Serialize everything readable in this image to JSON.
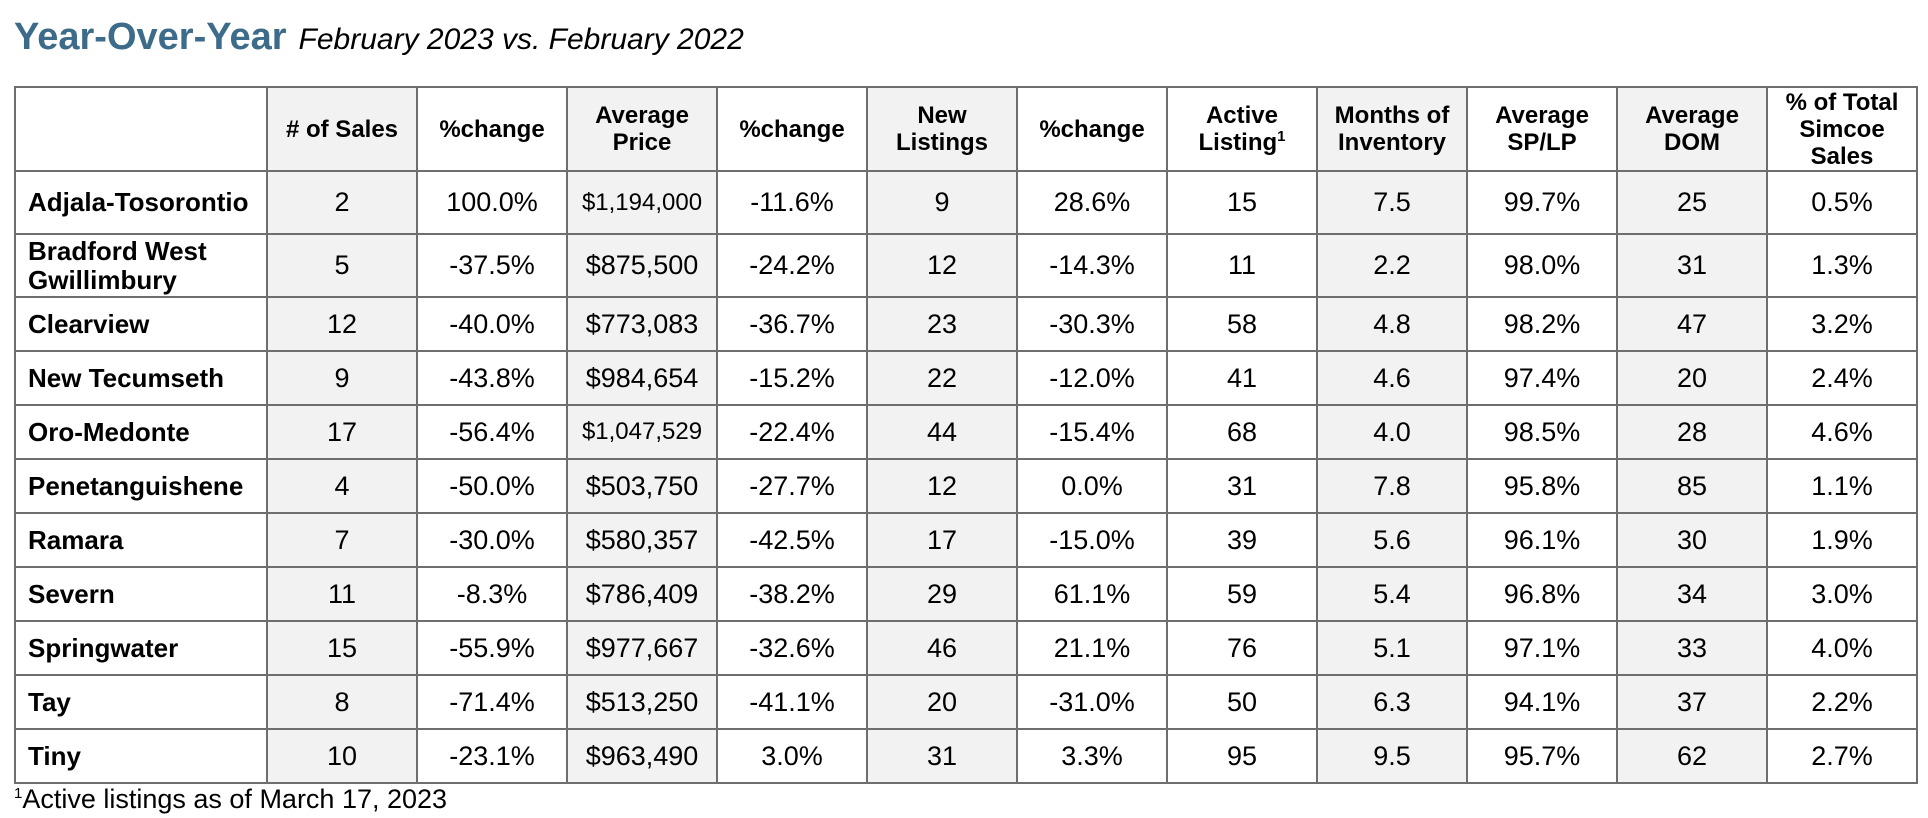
{
  "title": {
    "main": "Year-Over-Year",
    "sub": "February 2023 vs. February 2022"
  },
  "table": {
    "headers": [
      "",
      "# of Sales",
      "%change",
      "Average Price",
      "%change",
      "New Listings",
      "%change",
      "Active Listing",
      "Months of Inventory",
      "Average SP/LP",
      "Average DOM",
      "% of Total Simcoe Sales"
    ],
    "active_listing_marker": "1",
    "rows": [
      [
        "Adjala-Tosorontio",
        "2",
        "100.0%",
        "$1,194,000",
        "-11.6%",
        "9",
        "28.6%",
        "15",
        "7.5",
        "99.7%",
        "25",
        "0.5%"
      ],
      [
        "Bradford West Gwillimbury",
        "5",
        "-37.5%",
        "$875,500",
        "-24.2%",
        "12",
        "-14.3%",
        "11",
        "2.2",
        "98.0%",
        "31",
        "1.3%"
      ],
      [
        "Clearview",
        "12",
        "-40.0%",
        "$773,083",
        "-36.7%",
        "23",
        "-30.3%",
        "58",
        "4.8",
        "98.2%",
        "47",
        "3.2%"
      ],
      [
        "New Tecumseth",
        "9",
        "-43.8%",
        "$984,654",
        "-15.2%",
        "22",
        "-12.0%",
        "41",
        "4.6",
        "97.4%",
        "20",
        "2.4%"
      ],
      [
        "Oro-Medonte",
        "17",
        "-56.4%",
        "$1,047,529",
        "-22.4%",
        "44",
        "-15.4%",
        "68",
        "4.0",
        "98.5%",
        "28",
        "4.6%"
      ],
      [
        "Penetanguishene",
        "4",
        "-50.0%",
        "$503,750",
        "-27.7%",
        "12",
        "0.0%",
        "31",
        "7.8",
        "95.8%",
        "85",
        "1.1%"
      ],
      [
        "Ramara",
        "7",
        "-30.0%",
        "$580,357",
        "-42.5%",
        "17",
        "-15.0%",
        "39",
        "5.6",
        "96.1%",
        "30",
        "1.9%"
      ],
      [
        "Severn",
        "11",
        "-8.3%",
        "$786,409",
        "-38.2%",
        "29",
        "61.1%",
        "59",
        "5.4",
        "96.8%",
        "34",
        "3.0%"
      ],
      [
        "Springwater",
        "15",
        "-55.9%",
        "$977,667",
        "-32.6%",
        "46",
        "21.1%",
        "76",
        "5.1",
        "97.1%",
        "33",
        "4.0%"
      ],
      [
        "Tay",
        "8",
        "-71.4%",
        "$513,250",
        "-41.1%",
        "20",
        "-31.0%",
        "50",
        "6.3",
        "94.1%",
        "37",
        "2.2%"
      ],
      [
        "Tiny",
        "10",
        "-23.1%",
        "$963,490",
        "3.0%",
        "31",
        "3.3%",
        "95",
        "9.5",
        "95.7%",
        "62",
        "2.7%"
      ]
    ]
  },
  "footnote": {
    "marker": "1",
    "text": "Active listings as of March 17, 2023"
  }
}
